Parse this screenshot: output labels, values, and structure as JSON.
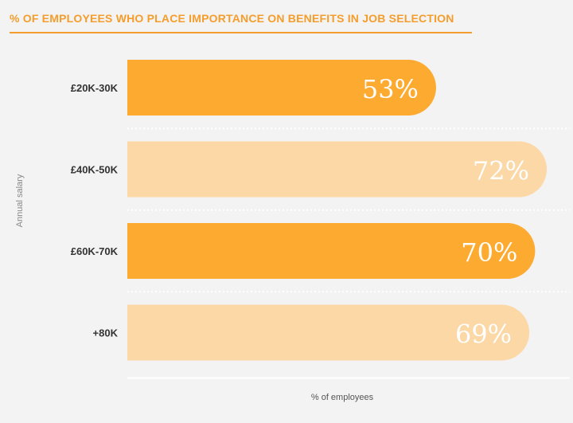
{
  "chart_data": {
    "type": "bar",
    "orientation": "horizontal",
    "title": "% OF EMPLOYEES WHO PLACE IMPORTANCE ON BENEFITS IN JOB SELECTION",
    "xlabel": "% of employees",
    "ylabel": "Annual salary",
    "categories": [
      "£20K-30K",
      "£40K-50K",
      "£60K-70K",
      "+80K"
    ],
    "values": [
      53,
      72,
      70,
      69
    ],
    "value_labels": [
      "53%",
      "72%",
      "70%",
      "69%"
    ],
    "xlim": [
      0,
      100
    ],
    "colors": {
      "accent": "#fdaa31",
      "accent_light": "#fbd8a6",
      "title": "#f59d2c",
      "label_text": "#333333",
      "value_text": "#ffffff"
    },
    "bar_color_order": [
      "accent",
      "accent_light",
      "accent",
      "accent_light"
    ],
    "grid": false,
    "legend": "none"
  }
}
